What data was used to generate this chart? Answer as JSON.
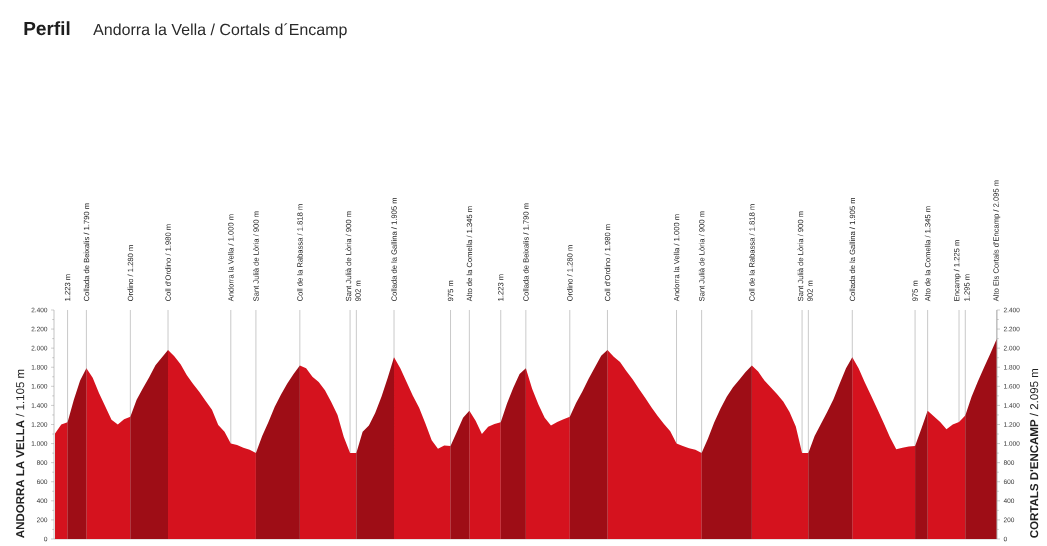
{
  "chart_data": {
    "type": "area",
    "title": "Perfil",
    "subtitle": "Andorra la Vella / Cortals d´Encamp",
    "ylabel": "**ANDORRA LA VELLA** / 1.105 m",
    "y2label": "**CORTALS D'ENCAMP** / 2.095 m",
    "grid": "x",
    "categories": [
      null,
      null,
      "1.223 m",
      null,
      null,
      "Collada de Beixalis / 1.790 m",
      null,
      null,
      null,
      null,
      null,
      null,
      "Ordino / 1.280 m",
      null,
      null,
      null,
      null,
      null,
      "Coll d'Ordino / 1.980 m",
      null,
      null,
      null,
      null,
      null,
      null,
      null,
      null,
      null,
      "Andorra la Vella / 1.000 m",
      null,
      null,
      null,
      "Sant Julià de Lòria / 900 m",
      null,
      null,
      null,
      null,
      null,
      null,
      "Coll de la Rabassa / 1.818 m",
      null,
      null,
      null,
      null,
      null,
      null,
      null,
      "Sant Julià de Lòria / 900 m",
      "902 m",
      null,
      null,
      null,
      null,
      null,
      "Collada de la Gallina / 1.905 m",
      null,
      null,
      null,
      null,
      null,
      null,
      null,
      null,
      "975 m",
      null,
      null,
      "Alto de la Comella / 1.345 m",
      null,
      null,
      null,
      null,
      "1.223 m",
      null,
      null,
      null,
      "Collada de Beixalis / 1.790 m",
      null,
      null,
      null,
      null,
      null,
      null,
      "Ordino / 1.280 m",
      null,
      null,
      null,
      null,
      null,
      "Coll d'Ordino / 1.980 m",
      null,
      null,
      null,
      null,
      null,
      null,
      null,
      null,
      null,
      null,
      "Andorra la Vella / 1.000 m",
      null,
      null,
      null,
      "Sant Julià de Lòria / 900 m",
      null,
      null,
      null,
      null,
      null,
      null,
      null,
      "Coll de la Rabassa / 1.818 m",
      null,
      null,
      null,
      null,
      null,
      null,
      null,
      "Sant Julià de Lòria / 900 m",
      "902 m",
      null,
      null,
      null,
      null,
      null,
      null,
      "Collada de la Gallina / 1.905 m",
      null,
      null,
      null,
      null,
      null,
      null,
      null,
      null,
      null,
      "975 m",
      null,
      "Alto de la Comella / 1.345 m",
      null,
      null,
      null,
      null,
      "Encamp / 1.225 m",
      "1.295 m",
      null,
      null,
      null,
      null,
      "Alto Els Cortals d'Encamp / 2.095 m"
    ],
    "series": [
      {
        "color": "#d5121e",
        "values": [
          1105,
          1200,
          1223,
          null,
          null,
          1790,
          1690,
          1530,
          1390,
          1250,
          1200,
          1255,
          1280,
          null,
          null,
          null,
          null,
          null,
          1980,
          1915,
          1830,
          1715,
          1625,
          1540,
          1445,
          1355,
          1195,
          1125,
          1000,
          985,
          955,
          935,
          900,
          null,
          null,
          null,
          null,
          null,
          null,
          1818,
          1790,
          1700,
          1645,
          1560,
          1435,
          1300,
          1070,
          900,
          902,
          null,
          null,
          null,
          null,
          null,
          1905,
          1790,
          1645,
          1500,
          1375,
          1210,
          1035,
          945,
          980,
          975,
          null,
          null,
          1345,
          1240,
          1100,
          1175,
          1205,
          1223,
          null,
          null,
          null,
          1790,
          1575,
          1410,
          1270,
          1190,
          1225,
          1255,
          1280,
          null,
          null,
          null,
          null,
          null,
          1980,
          1910,
          1855,
          1760,
          1675,
          1575,
          1480,
          1380,
          1290,
          1205,
          1130,
          1000,
          975,
          950,
          935,
          900,
          null,
          null,
          null,
          null,
          null,
          null,
          null,
          1818,
          1755,
          1660,
          1590,
          1520,
          1440,
          1330,
          1180,
          900,
          902,
          null,
          null,
          null,
          null,
          null,
          null,
          1905,
          1790,
          1640,
          1500,
          1360,
          1215,
          1065,
          940,
          955,
          970,
          975,
          null,
          1345,
          1285,
          1225,
          1150,
          1200,
          1225,
          1295,
          null,
          null,
          null,
          null,
          null
        ]
      },
      {
        "color": "#9e0d16",
        "values": [
          null,
          null,
          1223,
          1460,
          1660,
          1790,
          null,
          null,
          null,
          null,
          null,
          null,
          1280,
          1460,
          1580,
          1695,
          1820,
          1900,
          1980,
          null,
          null,
          null,
          null,
          null,
          null,
          null,
          null,
          null,
          null,
          null,
          null,
          null,
          900,
          1080,
          1225,
          1385,
          1515,
          1630,
          1730,
          1818,
          null,
          null,
          null,
          null,
          null,
          null,
          null,
          null,
          902,
          1125,
          1190,
          1320,
          1490,
          1690,
          1905,
          null,
          null,
          null,
          null,
          null,
          null,
          null,
          null,
          975,
          1120,
          1270,
          1345,
          null,
          null,
          null,
          null,
          1223,
          1420,
          1585,
          1730,
          1790,
          null,
          null,
          null,
          null,
          null,
          null,
          1280,
          1425,
          1545,
          1680,
          1800,
          1920,
          1980,
          null,
          null,
          null,
          null,
          null,
          null,
          null,
          null,
          null,
          null,
          null,
          null,
          null,
          null,
          900,
          1050,
          1220,
          1365,
          1490,
          1590,
          1670,
          1750,
          1818,
          null,
          null,
          null,
          null,
          null,
          null,
          null,
          null,
          902,
          1080,
          1205,
          1330,
          1465,
          1630,
          1790,
          1905,
          null,
          null,
          null,
          null,
          null,
          null,
          null,
          null,
          null,
          975,
          1155,
          1345,
          null,
          null,
          null,
          null,
          null,
          1295,
          1490,
          1650,
          1800,
          1945,
          2095
        ]
      }
    ],
    "ylim": [
      0,
      2400
    ],
    "yticks": [
      0,
      200,
      400,
      600,
      800,
      {
        "value": 1000,
        "label": "1.000"
      },
      {
        "value": 1200,
        "label": "1.200"
      },
      {
        "value": 1400,
        "label": "1.400"
      },
      {
        "value": 1600,
        "label": "1.600"
      },
      {
        "value": 1800,
        "label": "1.800"
      },
      {
        "value": 2000,
        "label": "2.000"
      },
      {
        "value": 2200,
        "label": "2.200"
      },
      {
        "value": 2400,
        "label": "2.400"
      }
    ],
    "y2lim": [
      0,
      2400
    ],
    "y2ticks": [
      0,
      200,
      400,
      600,
      800,
      {
        "value": 1000,
        "label": "1.000"
      },
      {
        "value": 1200,
        "label": "1.200"
      },
      {
        "value": 1400,
        "label": "1.400"
      },
      {
        "value": 1600,
        "label": "1.600"
      },
      {
        "value": 1800,
        "label": "1.800"
      },
      {
        "value": 2000,
        "label": "2.000"
      },
      {
        "value": 2200,
        "label": "2.200"
      },
      {
        "value": 2400,
        "label": "2.400"
      }
    ]
  }
}
